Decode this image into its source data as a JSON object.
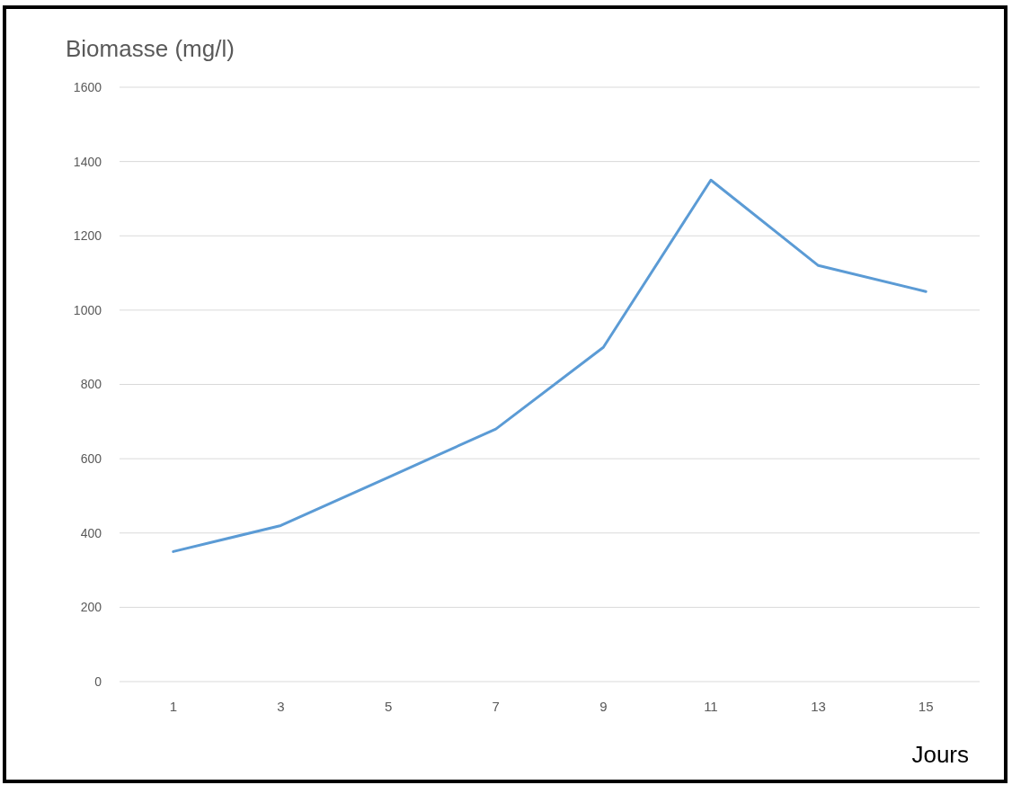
{
  "chart_data": {
    "type": "line",
    "ylabel": "Biomasse (mg/l)",
    "xlabel": "Jours",
    "categories": [
      "1",
      "3",
      "5",
      "7",
      "9",
      "11",
      "13",
      "15"
    ],
    "series": [
      {
        "color": "#5b9bd5",
        "values": [
          350,
          420,
          550,
          680,
          900,
          1350,
          1120,
          1050
        ]
      }
    ],
    "ylim": [
      0,
      1600
    ],
    "yticks": [
      0,
      200,
      400,
      600,
      800,
      1000,
      1200,
      1400,
      1600
    ],
    "grid": "y",
    "marker": "none",
    "line_style": "solid"
  }
}
